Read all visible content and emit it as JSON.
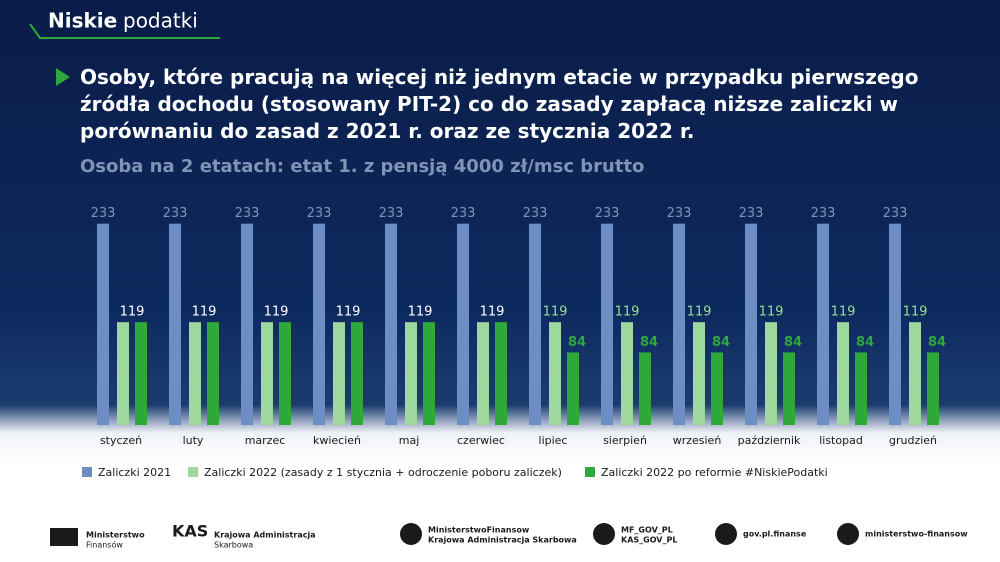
{
  "header": {
    "brand_bold": "Niskie",
    "brand": "podatki"
  },
  "chart_data": {
    "type": "bar",
    "title": "Osoby, które pracują na więcej niż jednym etacie w przypadku pierwszego źródła dochodu (stosowany PIT-2) co do zasady zapłacą niższe zaliczki w porównaniu do zasad z 2021 r. oraz ze stycznia 2022 r.",
    "subtitle": "Osoba na 2 etatach: etat 1. z pensją 4000 zł/msc brutto",
    "categories": [
      "styczeń",
      "luty",
      "marzec",
      "kwiecień",
      "maj",
      "czerwiec",
      "lipiec",
      "sierpień",
      "wrzesień",
      "październik",
      "listopad",
      "grudzień"
    ],
    "series": [
      {
        "name": "Zaliczki 2021",
        "color": "#6d8ec4",
        "values": [
          233,
          233,
          233,
          233,
          233,
          233,
          233,
          233,
          233,
          233,
          233,
          233
        ]
      },
      {
        "name": "Zaliczki 2022 (zasady z 1 stycznia + odroczenie poboru zaliczek)",
        "color": "#9ed89c",
        "values": [
          119,
          119,
          119,
          119,
          119,
          119,
          119,
          119,
          119,
          119,
          119,
          119
        ]
      },
      {
        "name": "Zaliczki 2022 po reformie #NiskiePodatki",
        "color": "#2ea83a",
        "values": [
          119,
          119,
          119,
          119,
          119,
          119,
          84,
          84,
          84,
          84,
          84,
          84
        ],
        "value_labels": [
          null,
          null,
          null,
          null,
          null,
          null,
          "84",
          "84",
          "84",
          "84",
          "84",
          "84"
        ]
      }
    ],
    "ylim": [
      0,
      250
    ]
  },
  "footer": {
    "mf": [
      "Ministerstwo",
      "Finansów"
    ],
    "kas": [
      "Krajowa Administracja",
      "Skarbowa"
    ],
    "youtube": [
      "MinisterstwoFinansow",
      "Krajowa Administracja Skarbowa"
    ],
    "twitter": [
      "MF_GOV_PL",
      "KAS_GOV_PL"
    ],
    "facebook": "gov.pl.finanse",
    "linkedin": "ministerstwo-finansow"
  }
}
